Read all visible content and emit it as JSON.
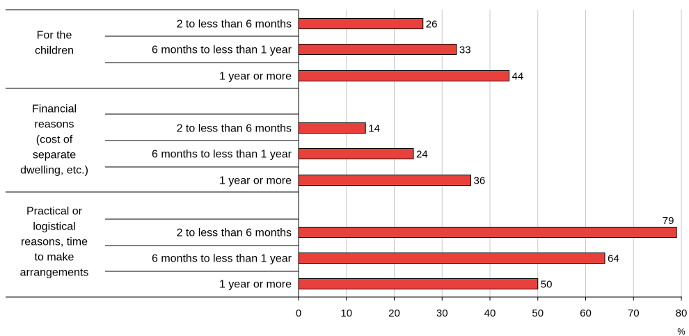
{
  "chart_data": {
    "type": "bar",
    "orientation": "horizontal",
    "title": "",
    "xlabel": "%",
    "ylabel": "",
    "xlim": [
      0,
      80
    ],
    "xticks": [
      0,
      10,
      20,
      30,
      40,
      50,
      60,
      70,
      80
    ],
    "grid": true,
    "legend": "none",
    "bar_color": "#e8413c",
    "groups": [
      {
        "name": "For the children",
        "lines": [
          "For the",
          "children"
        ],
        "items": [
          {
            "label": "2 to less than 6 months",
            "value": 26
          },
          {
            "label": "6 months to less than 1 year",
            "value": 33
          },
          {
            "label": "1 year or more",
            "value": 44
          }
        ]
      },
      {
        "name": "Financial reasons (cost of separate dwelling, etc.)",
        "lines": [
          "Financial",
          "reasons",
          "(cost of",
          "separate",
          "dwelling, etc.)"
        ],
        "items": [
          {
            "label": "2 to less than 6 months",
            "value": 14
          },
          {
            "label": "6 months to less than 1 year",
            "value": 24
          },
          {
            "label": "1 year or more",
            "value": 36
          }
        ]
      },
      {
        "name": "Practical or logistical reasons, time to make arrangements",
        "lines": [
          "Practical or",
          "logistical",
          "reasons, time",
          "to make",
          "arrangements"
        ],
        "items": [
          {
            "label": "2 to less than 6 months",
            "value": 79
          },
          {
            "label": "6 months to less than 1 year",
            "value": 64
          },
          {
            "label": "1 year or more",
            "value": 50
          }
        ]
      }
    ]
  }
}
